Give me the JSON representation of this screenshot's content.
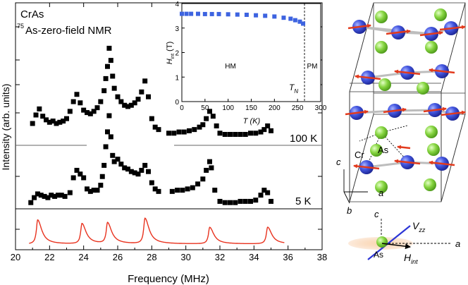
{
  "chart_data": [
    {
      "type": "scatter",
      "title": "CrAs",
      "subtitle_sup": "75",
      "subtitle": "As-zero-field NMR",
      "xlabel": "Frequency (MHz)",
      "ylabel": "Intensity (arb. units)",
      "xlim": [
        20,
        38
      ],
      "x_ticks": [
        "20",
        "22",
        "24",
        "26",
        "28",
        "30",
        "32",
        "34",
        "36",
        "38"
      ],
      "series": [
        {
          "name": "100 K",
          "points": [
            [
              21.0,
              0.18
            ],
            [
              21.2,
              0.25
            ],
            [
              21.4,
              0.3
            ],
            [
              21.6,
              0.24
            ],
            [
              21.8,
              0.21
            ],
            [
              22.0,
              0.19
            ],
            [
              22.2,
              0.2
            ],
            [
              22.4,
              0.18
            ],
            [
              22.6,
              0.19
            ],
            [
              22.8,
              0.2
            ],
            [
              23.0,
              0.22
            ],
            [
              23.2,
              0.28
            ],
            [
              23.4,
              0.36
            ],
            [
              23.6,
              0.42
            ],
            [
              23.8,
              0.35
            ],
            [
              24.0,
              0.29
            ],
            [
              24.2,
              0.27
            ],
            [
              24.4,
              0.26
            ],
            [
              24.6,
              0.28
            ],
            [
              24.8,
              0.31
            ],
            [
              25.0,
              0.36
            ],
            [
              25.2,
              0.45
            ],
            [
              25.3,
              0.55
            ],
            [
              25.4,
              0.65
            ],
            [
              25.5,
              0.8
            ],
            [
              25.6,
              0.7
            ],
            [
              25.7,
              0.57
            ],
            [
              25.8,
              0.47
            ],
            [
              26.0,
              0.4
            ],
            [
              26.2,
              0.36
            ],
            [
              26.4,
              0.33
            ],
            [
              26.6,
              0.32
            ],
            [
              26.8,
              0.33
            ],
            [
              27.0,
              0.35
            ],
            [
              27.2,
              0.38
            ],
            [
              27.4,
              0.44
            ],
            [
              27.6,
              0.53
            ],
            [
              27.8,
              0.4
            ],
            [
              28.0,
              0.22
            ],
            [
              28.2,
              0.15
            ],
            [
              28.4,
              0.13
            ],
            [
              29.0,
              0.1
            ],
            [
              29.3,
              0.1
            ],
            [
              29.6,
              0.11
            ],
            [
              29.9,
              0.11
            ],
            [
              30.2,
              0.12
            ],
            [
              30.5,
              0.13
            ],
            [
              30.8,
              0.15
            ],
            [
              31.0,
              0.17
            ],
            [
              31.2,
              0.22
            ],
            [
              31.4,
              0.28
            ],
            [
              31.6,
              0.24
            ],
            [
              31.8,
              0.16
            ],
            [
              32.0,
              0.1
            ],
            [
              32.3,
              0.09
            ],
            [
              32.6,
              0.09
            ],
            [
              32.9,
              0.09
            ],
            [
              33.2,
              0.09
            ],
            [
              33.5,
              0.09
            ],
            [
              33.8,
              0.1
            ],
            [
              34.1,
              0.1
            ],
            [
              34.4,
              0.11
            ],
            [
              34.6,
              0.13
            ],
            [
              34.8,
              0.16
            ],
            [
              35.0,
              0.12
            ]
          ]
        },
        {
          "name": "5 K",
          "points": [
            [
              20.9,
              0.05
            ],
            [
              21.1,
              0.09
            ],
            [
              21.3,
              0.12
            ],
            [
              21.5,
              0.11
            ],
            [
              21.7,
              0.1
            ],
            [
              21.9,
              0.09
            ],
            [
              22.1,
              0.11
            ],
            [
              22.3,
              0.1
            ],
            [
              22.5,
              0.11
            ],
            [
              22.7,
              0.11
            ],
            [
              22.9,
              0.1
            ],
            [
              23.2,
              0.13
            ],
            [
              23.4,
              0.25
            ],
            [
              23.6,
              0.31
            ],
            [
              23.8,
              0.28
            ],
            [
              24.0,
              0.25
            ],
            [
              24.2,
              0.16
            ],
            [
              24.4,
              0.14
            ],
            [
              24.6,
              0.15
            ],
            [
              24.8,
              0.15
            ],
            [
              25.0,
              0.19
            ],
            [
              25.1,
              0.26
            ],
            [
              25.2,
              0.35
            ],
            [
              25.3,
              0.5
            ],
            [
              25.4,
              0.62
            ],
            [
              25.5,
              0.75
            ],
            [
              25.6,
              0.58
            ],
            [
              25.7,
              0.43
            ],
            [
              25.8,
              0.38
            ],
            [
              26.0,
              0.4
            ],
            [
              26.2,
              0.36
            ],
            [
              26.4,
              0.33
            ],
            [
              26.6,
              0.32
            ],
            [
              26.8,
              0.3
            ],
            [
              27.0,
              0.29
            ],
            [
              27.2,
              0.28
            ],
            [
              27.4,
              0.31
            ],
            [
              27.6,
              0.35
            ],
            [
              27.8,
              0.3
            ],
            [
              28.0,
              0.21
            ],
            [
              28.2,
              0.16
            ],
            [
              28.4,
              0.14
            ],
            [
              29.2,
              0.14
            ],
            [
              29.5,
              0.15
            ],
            [
              29.8,
              0.15
            ],
            [
              30.1,
              0.16
            ],
            [
              30.4,
              0.17
            ],
            [
              30.7,
              0.2
            ],
            [
              31.0,
              0.24
            ],
            [
              31.2,
              0.31
            ],
            [
              31.4,
              0.38
            ],
            [
              31.5,
              0.33
            ],
            [
              31.7,
              0.15
            ],
            [
              32.0,
              0.06
            ],
            [
              32.3,
              0.05
            ],
            [
              32.6,
              0.05
            ],
            [
              32.9,
              0.05
            ],
            [
              33.2,
              0.06
            ],
            [
              33.5,
              0.06
            ],
            [
              33.8,
              0.06
            ],
            [
              34.1,
              0.07
            ],
            [
              34.4,
              0.11
            ],
            [
              34.6,
              0.15
            ],
            [
              34.8,
              0.13
            ],
            [
              35.0,
              0.06
            ]
          ]
        }
      ],
      "simulation": {
        "peaks": [
          {
            "x": 21.3,
            "h": 0.95
          },
          {
            "x": 23.9,
            "h": 0.8
          },
          {
            "x": 25.4,
            "h": 0.82
          },
          {
            "x": 27.6,
            "h": 1.0
          },
          {
            "x": 31.4,
            "h": 0.65
          },
          {
            "x": 34.8,
            "h": 0.66
          }
        ],
        "width": 0.09
      },
      "colors": {
        "simulation": "#e8321e",
        "markers": "#000000",
        "baseline": "#666666"
      }
    },
    {
      "type": "scatter",
      "xlabel": "T (K)",
      "ylabel_main": "H",
      "ylabel_sub": "int",
      "ylabel_unit": " (T)",
      "xlim": [
        0,
        300
      ],
      "ylim": [
        0,
        4
      ],
      "x_ticks": [
        "0",
        "50",
        "100",
        "150",
        "200",
        "250",
        "300"
      ],
      "y_ticks": [
        "0",
        "1",
        "2",
        "3",
        "4"
      ],
      "region_labels": [
        "HM",
        "PM"
      ],
      "tn_label_main": "T",
      "tn_label_sub": "N",
      "tn_value": 265,
      "points": [
        [
          0,
          3.58
        ],
        [
          10,
          3.58
        ],
        [
          20,
          3.58
        ],
        [
          35,
          3.58
        ],
        [
          50,
          3.57
        ],
        [
          65,
          3.57
        ],
        [
          80,
          3.57
        ],
        [
          100,
          3.56
        ],
        [
          120,
          3.55
        ],
        [
          140,
          3.54
        ],
        [
          160,
          3.52
        ],
        [
          180,
          3.5
        ],
        [
          200,
          3.47
        ],
        [
          220,
          3.42
        ],
        [
          235,
          3.38
        ],
        [
          245,
          3.32
        ],
        [
          255,
          3.26
        ],
        [
          262,
          3.18
        ]
      ],
      "colors": {
        "points": "#3d63e0"
      }
    }
  ],
  "structure": {
    "axis_labels": [
      "c",
      "a",
      "b"
    ],
    "atom_labels": [
      "Cr",
      "As"
    ],
    "colors": {
      "cr": "#3f4ed6",
      "as": "#7ed33a",
      "moment": "#e23a1d"
    }
  },
  "efg_diagram": {
    "label_c": "c",
    "label_vzz_main": "V",
    "label_vzz_sub": "zz",
    "label_as": "As",
    "label_a": "a",
    "label_hint_main": "H",
    "label_hint_sub": "int",
    "colors": {
      "ellipsoid": "#f7c59a",
      "vzz": "#2b35d6",
      "hint": "#000000"
    }
  }
}
